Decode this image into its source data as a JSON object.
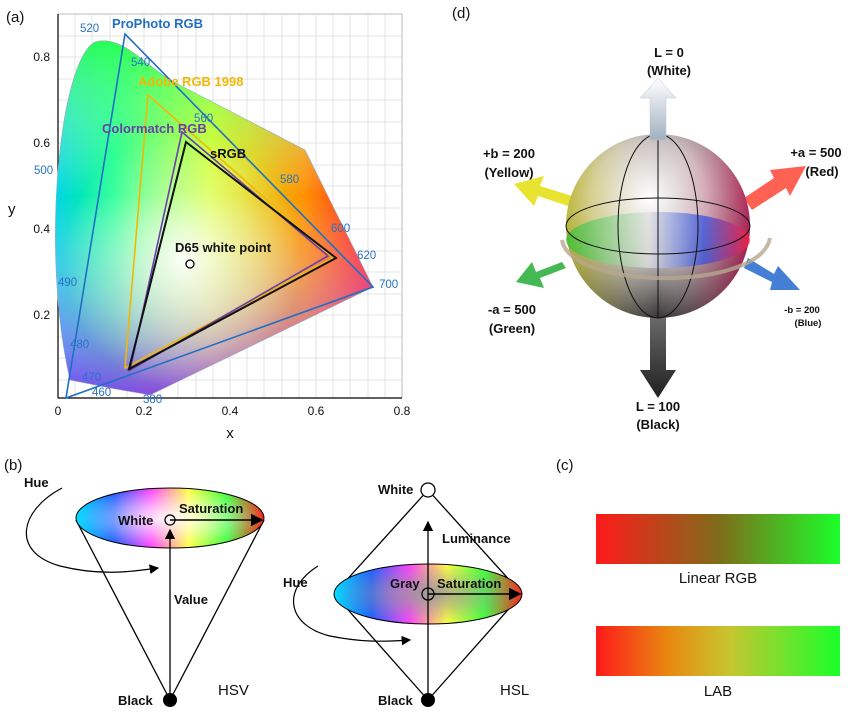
{
  "panels": {
    "a": "(a)",
    "b": "(b)",
    "c": "(c)",
    "d": "(d)"
  },
  "cie": {
    "xlabel": "x",
    "ylabel": "y",
    "xticks": [
      "0",
      "0.2",
      "0.4",
      "0.6",
      "0.8"
    ],
    "yticks": [
      "0.2",
      "0.4",
      "0.6",
      "0.8"
    ],
    "wavelengths": [
      "520",
      "540",
      "560",
      "500",
      "580",
      "600",
      "620",
      "700",
      "490",
      "480",
      "470",
      "460",
      "380"
    ],
    "gamut_labels": {
      "prophoto": "ProPhoto RGB",
      "adobe": "Adobe RGB 1998",
      "colormatch": "Colormatch RGB",
      "srgb": "sRGB"
    },
    "whitepoint": "D65 white point",
    "colors": {
      "prophoto": "#1f6fc4",
      "adobe": "#f2b705",
      "colormatch": "#6a3fa8",
      "srgb": "#111111"
    }
  },
  "hsv": {
    "hue": "Hue",
    "white": "White",
    "saturation": "Saturation",
    "value": "Value",
    "black": "Black",
    "title": "HSV"
  },
  "hsl": {
    "white": "White",
    "luminance": "Luminance",
    "hue": "Hue",
    "gray": "Gray",
    "saturation": "Saturation",
    "black": "Black",
    "title": "HSL"
  },
  "gradients": {
    "linear": "Linear RGB",
    "lab": "LAB"
  },
  "lab": {
    "l0": "L = 0",
    "white": "(White)",
    "bpos": "+b = 200",
    "yellow": "(Yellow)",
    "apos": "+a = 500",
    "red": "(Red)",
    "aneg": "-a = 500",
    "green": "(Green)",
    "bneg": "-b = 200",
    "blue": "(Blue)",
    "l100": "L = 100",
    "black": "(Black)"
  }
}
